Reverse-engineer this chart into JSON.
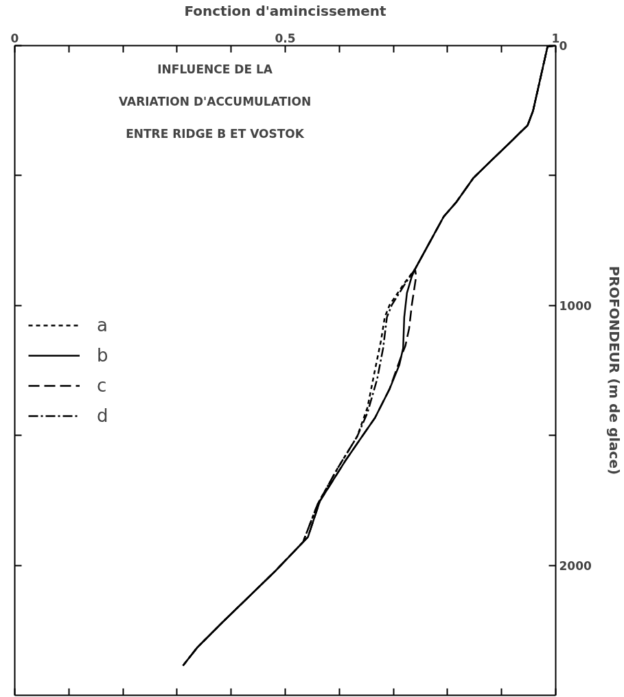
{
  "chart_data": {
    "type": "line",
    "xlabel": "Fonction d'amincissement",
    "ylabel": "PROFONDEUR (m de glace)",
    "annotations": [
      "INFLUENCE DE LA",
      "VARIATION D'ACCUMULATION",
      "ENTRE RIDGE B ET VOSTOK"
    ],
    "xlim": [
      0,
      1
    ],
    "ylim": [
      2500,
      0
    ],
    "xticks": [
      0,
      {
        "value": 0.1,
        "label": null
      },
      {
        "value": 0.2,
        "label": null
      },
      {
        "value": 0.3,
        "label": null
      },
      {
        "value": 0.4,
        "label": null
      },
      0.5,
      {
        "value": 0.6,
        "label": null
      },
      {
        "value": 0.7,
        "label": null
      },
      {
        "value": 0.8,
        "label": null
      },
      {
        "value": 0.9,
        "label": null
      },
      1
    ],
    "yticks": [
      0,
      {
        "value": 500,
        "label": null
      },
      1000,
      {
        "value": 1500,
        "label": null
      },
      2000
    ],
    "grid": false,
    "legend": "left",
    "series": [
      {
        "name": "a",
        "color": "#000000",
        "line_style": "dashed",
        "x": [
          1,
          0.985,
          0.968,
          0.958,
          0.948,
          0.934,
          0.921,
          0.889,
          0.848,
          0.816,
          0.793,
          0.74,
          0.72,
          0.693,
          0.684,
          0.677,
          0.666,
          0.652,
          0.633,
          0.597,
          0.56,
          0.533,
          0.482,
          0.437,
          0.382,
          0.337,
          0.311
        ],
        "values": [
          0,
          3,
          160,
          252,
          307,
          335,
          362,
          426,
          509,
          603,
          658,
          860,
          915,
          998,
          1045,
          1136,
          1247,
          1393,
          1504,
          1626,
          1764,
          1910,
          2021,
          2112,
          2223,
          2317,
          2386
        ]
      },
      {
        "name": "b",
        "color": "#000000",
        "line_style": "solid",
        "x": [
          1,
          0.985,
          0.968,
          0.958,
          0.948,
          0.934,
          0.921,
          0.889,
          0.848,
          0.816,
          0.793,
          0.74,
          0.734,
          0.725,
          0.72,
          0.718,
          0.711,
          0.693,
          0.666,
          0.642,
          0.611,
          0.564,
          0.542,
          0.482,
          0.437,
          0.382,
          0.337,
          0.311
        ],
        "values": [
          0,
          3,
          160,
          252,
          307,
          335,
          362,
          426,
          509,
          603,
          658,
          860,
          888,
          952,
          1045,
          1164,
          1228,
          1321,
          1432,
          1504,
          1598,
          1753,
          1891,
          2021,
          2112,
          2223,
          2317,
          2386
        ]
      },
      {
        "name": "c",
        "color": "#000000",
        "line_style": "longdash",
        "x": [
          1,
          0.985,
          0.968,
          0.958,
          0.948,
          0.934,
          0.921,
          0.889,
          0.848,
          0.816,
          0.793,
          0.74,
          0.742,
          0.734,
          0.729,
          0.722,
          0.715,
          0.693,
          0.666,
          0.642,
          0.611,
          0.564,
          0.542,
          0.482,
          0.437,
          0.382,
          0.337,
          0.311
        ],
        "values": [
          0,
          3,
          160,
          252,
          307,
          335,
          362,
          426,
          509,
          603,
          658,
          860,
          888,
          998,
          1089,
          1156,
          1192,
          1321,
          1432,
          1504,
          1598,
          1753,
          1891,
          2021,
          2112,
          2223,
          2317,
          2386
        ]
      },
      {
        "name": "d",
        "color": "#000000",
        "line_style": "dashdot",
        "x": [
          1,
          0.985,
          0.968,
          0.958,
          0.948,
          0.934,
          0.921,
          0.889,
          0.848,
          0.816,
          0.793,
          0.74,
          0.722,
          0.697,
          0.688,
          0.681,
          0.67,
          0.652,
          0.633,
          0.597,
          0.56,
          0.533,
          0.482,
          0.437,
          0.382,
          0.337,
          0.311
        ],
        "values": [
          0,
          3,
          160,
          252,
          307,
          335,
          362,
          426,
          509,
          603,
          658,
          860,
          915,
          998,
          1045,
          1164,
          1283,
          1413,
          1504,
          1626,
          1764,
          1910,
          2021,
          2112,
          2223,
          2317,
          2386
        ]
      }
    ]
  }
}
